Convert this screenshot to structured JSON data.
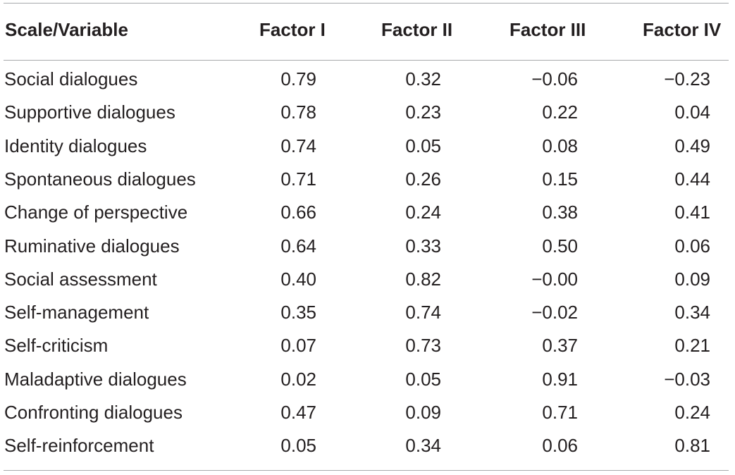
{
  "headers": [
    "Scale/Variable",
    "Factor I",
    "Factor II",
    "Factor III",
    "Factor IV"
  ],
  "rows": [
    {
      "label": "Social dialogues",
      "values": [
        "0.79",
        "0.32",
        "−0.06",
        "−0.23"
      ]
    },
    {
      "label": "Supportive dialogues",
      "values": [
        "0.78",
        "0.23",
        "0.22",
        "0.04"
      ]
    },
    {
      "label": "Identity dialogues",
      "values": [
        "0.74",
        "0.05",
        "0.08",
        "0.49"
      ]
    },
    {
      "label": "Spontaneous dialogues",
      "values": [
        "0.71",
        "0.26",
        "0.15",
        "0.44"
      ]
    },
    {
      "label": "Change of perspective",
      "values": [
        "0.66",
        "0.24",
        "0.38",
        "0.41"
      ]
    },
    {
      "label": "Ruminative dialogues",
      "values": [
        "0.64",
        "0.33",
        "0.50",
        "0.06"
      ]
    },
    {
      "label": "Social assessment",
      "values": [
        "0.40",
        "0.82",
        "−0.00",
        "0.09"
      ]
    },
    {
      "label": "Self-management",
      "values": [
        "0.35",
        "0.74",
        "−0.02",
        "0.34"
      ]
    },
    {
      "label": "Self-criticism",
      "values": [
        "0.07",
        "0.73",
        "0.37",
        "0.21"
      ]
    },
    {
      "label": "Maladaptive dialogues",
      "values": [
        "0.02",
        "0.05",
        "0.91",
        "−0.03"
      ]
    },
    {
      "label": "Confronting dialogues",
      "values": [
        "0.47",
        "0.09",
        "0.71",
        "0.24"
      ]
    },
    {
      "label": "Self-reinforcement",
      "values": [
        "0.05",
        "0.34",
        "0.06",
        "0.81"
      ]
    }
  ]
}
